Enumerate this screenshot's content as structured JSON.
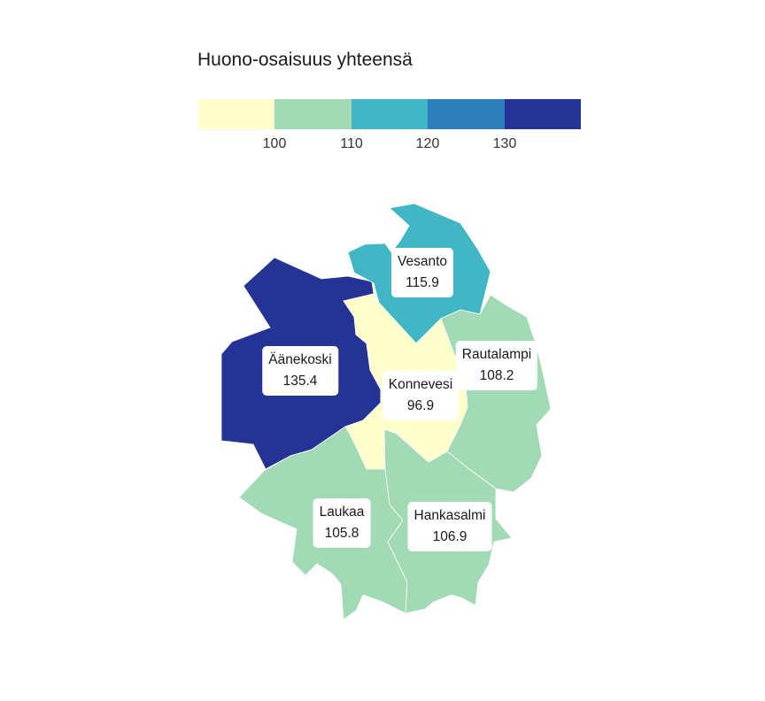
{
  "legend": {
    "title": "Huono-osaisuus yhteensä",
    "colors": [
      "#ffffcc",
      "#a1dab4",
      "#41b6c4",
      "#2c7fb8",
      "#253494"
    ],
    "ticks": [
      {
        "key": "t100",
        "value": "100"
      },
      {
        "key": "t110",
        "value": "110"
      },
      {
        "key": "t120",
        "value": "120"
      },
      {
        "key": "t130",
        "value": "130"
      }
    ]
  },
  "regions": {
    "aanekoski": {
      "name": "Äänekoski",
      "value": "135.4",
      "color": "#253494"
    },
    "vesanto": {
      "name": "Vesanto",
      "value": "115.9",
      "color": "#41b6c4"
    },
    "konnevesi": {
      "name": "Konnevesi",
      "value": "96.9",
      "color": "#ffffcc"
    },
    "rautalampi": {
      "name": "Rautalampi",
      "value": "108.2",
      "color": "#a1dab4"
    },
    "laukaa": {
      "name": "Laukaa",
      "value": "105.8",
      "color": "#a1dab4"
    },
    "hankasalmi": {
      "name": "Hankasalmi",
      "value": "106.9",
      "color": "#a1dab4"
    }
  }
}
